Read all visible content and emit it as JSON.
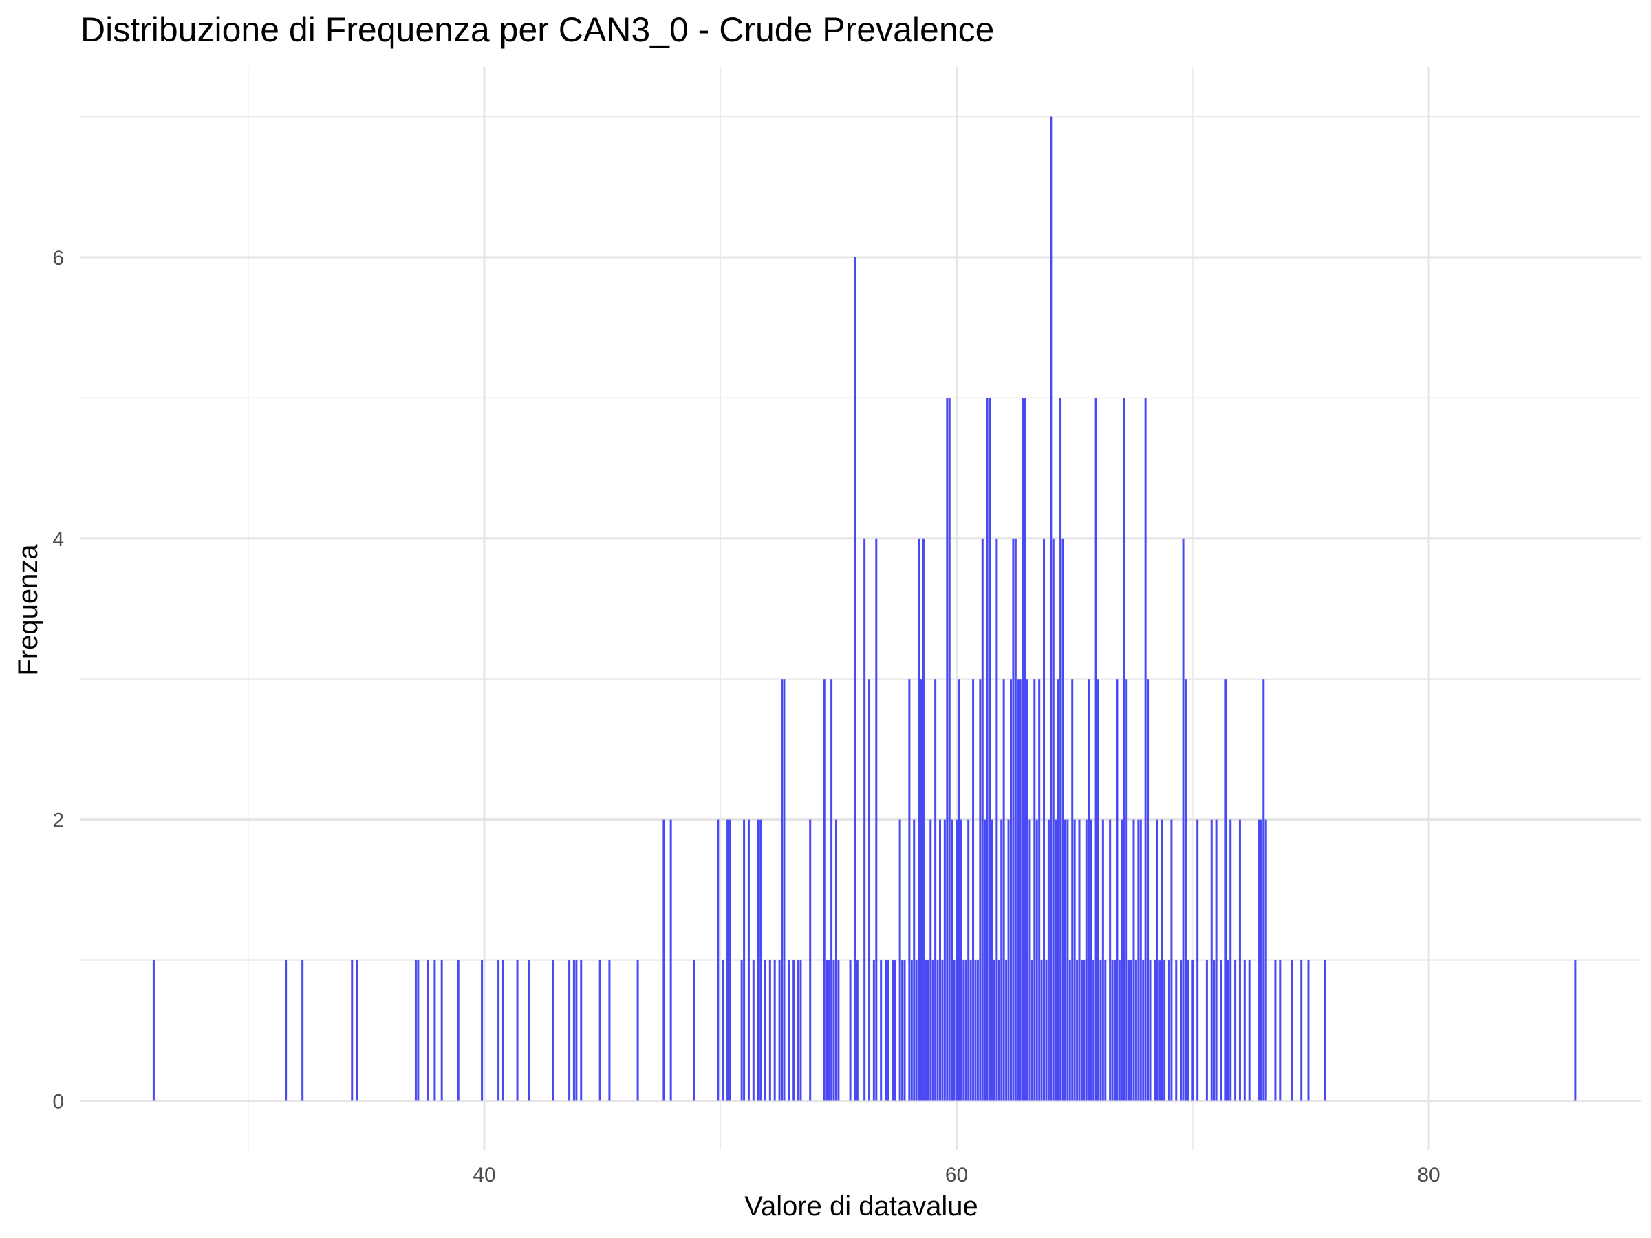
{
  "chart_data": {
    "type": "bar",
    "title": "Distribuzione di Frequenza per CAN3_0 - Crude Prevalence",
    "xlabel": "Valore di datavalue",
    "ylabel": "Frequenza",
    "xlim": [
      22.9,
      89.0
    ],
    "ylim": [
      -0.35,
      7.35
    ],
    "x_ticks": [
      40,
      60,
      80
    ],
    "y_ticks": [
      0,
      2,
      4,
      6
    ],
    "grid": true,
    "bar_color": "#4a4af4",
    "points": [
      [
        26.0,
        1
      ],
      [
        31.6,
        1
      ],
      [
        32.3,
        1
      ],
      [
        34.4,
        1
      ],
      [
        34.6,
        1
      ],
      [
        37.1,
        1
      ],
      [
        37.2,
        1
      ],
      [
        37.6,
        1
      ],
      [
        37.9,
        1
      ],
      [
        38.2,
        1
      ],
      [
        38.9,
        1
      ],
      [
        39.9,
        1
      ],
      [
        40.6,
        1
      ],
      [
        40.8,
        1
      ],
      [
        41.4,
        1
      ],
      [
        41.9,
        1
      ],
      [
        42.9,
        1
      ],
      [
        43.6,
        1
      ],
      [
        43.8,
        1
      ],
      [
        43.9,
        1
      ],
      [
        44.1,
        1
      ],
      [
        44.9,
        1
      ],
      [
        45.3,
        1
      ],
      [
        46.5,
        1
      ],
      [
        47.6,
        2
      ],
      [
        47.9,
        2
      ],
      [
        48.9,
        1
      ],
      [
        49.9,
        2
      ],
      [
        50.1,
        1
      ],
      [
        50.3,
        2
      ],
      [
        50.4,
        2
      ],
      [
        50.9,
        1
      ],
      [
        51.0,
        2
      ],
      [
        51.2,
        2
      ],
      [
        51.4,
        1
      ],
      [
        51.6,
        2
      ],
      [
        51.7,
        2
      ],
      [
        51.9,
        1
      ],
      [
        52.1,
        1
      ],
      [
        52.3,
        1
      ],
      [
        52.5,
        1
      ],
      [
        52.6,
        3
      ],
      [
        52.7,
        3
      ],
      [
        52.9,
        1
      ],
      [
        53.1,
        1
      ],
      [
        53.3,
        1
      ],
      [
        53.4,
        1
      ],
      [
        53.8,
        2
      ],
      [
        54.4,
        3
      ],
      [
        54.5,
        1
      ],
      [
        54.6,
        1
      ],
      [
        54.7,
        3
      ],
      [
        54.8,
        1
      ],
      [
        54.9,
        2
      ],
      [
        55.0,
        1
      ],
      [
        55.5,
        1
      ],
      [
        55.7,
        6
      ],
      [
        55.8,
        1
      ],
      [
        56.1,
        4
      ],
      [
        56.3,
        3
      ],
      [
        56.5,
        1
      ],
      [
        56.6,
        4
      ],
      [
        56.8,
        1
      ],
      [
        57.0,
        1
      ],
      [
        57.1,
        1
      ],
      [
        57.3,
        1
      ],
      [
        57.4,
        1
      ],
      [
        57.6,
        2
      ],
      [
        57.7,
        1
      ],
      [
        57.8,
        1
      ],
      [
        58.0,
        3
      ],
      [
        58.1,
        1
      ],
      [
        58.2,
        2
      ],
      [
        58.3,
        1
      ],
      [
        58.4,
        4
      ],
      [
        58.5,
        3
      ],
      [
        58.6,
        4
      ],
      [
        58.7,
        1
      ],
      [
        58.8,
        1
      ],
      [
        58.9,
        2
      ],
      [
        59.0,
        1
      ],
      [
        59.1,
        3
      ],
      [
        59.2,
        1
      ],
      [
        59.3,
        2
      ],
      [
        59.4,
        1
      ],
      [
        59.5,
        2
      ],
      [
        59.6,
        5
      ],
      [
        59.7,
        5
      ],
      [
        59.8,
        2
      ],
      [
        59.9,
        1
      ],
      [
        60.0,
        2
      ],
      [
        60.1,
        3
      ],
      [
        60.2,
        2
      ],
      [
        60.3,
        1
      ],
      [
        60.4,
        1
      ],
      [
        60.5,
        2
      ],
      [
        60.6,
        1
      ],
      [
        60.7,
        3
      ],
      [
        60.8,
        1
      ],
      [
        60.9,
        1
      ],
      [
        61.0,
        3
      ],
      [
        61.1,
        4
      ],
      [
        61.2,
        2
      ],
      [
        61.3,
        5
      ],
      [
        61.4,
        5
      ],
      [
        61.5,
        2
      ],
      [
        61.6,
        1
      ],
      [
        61.7,
        4
      ],
      [
        61.8,
        1
      ],
      [
        61.9,
        2
      ],
      [
        62.0,
        3
      ],
      [
        62.1,
        1
      ],
      [
        62.2,
        2
      ],
      [
        62.3,
        3
      ],
      [
        62.4,
        4
      ],
      [
        62.5,
        4
      ],
      [
        62.6,
        3
      ],
      [
        62.7,
        3
      ],
      [
        62.8,
        5
      ],
      [
        62.9,
        5
      ],
      [
        63.0,
        3
      ],
      [
        63.1,
        2
      ],
      [
        63.2,
        1
      ],
      [
        63.3,
        3
      ],
      [
        63.4,
        2
      ],
      [
        63.5,
        3
      ],
      [
        63.6,
        1
      ],
      [
        63.7,
        4
      ],
      [
        63.8,
        1
      ],
      [
        63.9,
        2
      ],
      [
        64.0,
        7
      ],
      [
        64.1,
        4
      ],
      [
        64.2,
        2
      ],
      [
        64.3,
        3
      ],
      [
        64.4,
        5
      ],
      [
        64.5,
        4
      ],
      [
        64.6,
        2
      ],
      [
        64.7,
        2
      ],
      [
        64.8,
        1
      ],
      [
        64.9,
        3
      ],
      [
        65.0,
        2
      ],
      [
        65.1,
        1
      ],
      [
        65.2,
        2
      ],
      [
        65.3,
        1
      ],
      [
        65.4,
        1
      ],
      [
        65.5,
        2
      ],
      [
        65.6,
        3
      ],
      [
        65.7,
        2
      ],
      [
        65.8,
        1
      ],
      [
        65.9,
        5
      ],
      [
        66.0,
        3
      ],
      [
        66.1,
        1
      ],
      [
        66.2,
        2
      ],
      [
        66.3,
        1
      ],
      [
        66.5,
        2
      ],
      [
        66.6,
        1
      ],
      [
        66.7,
        1
      ],
      [
        66.8,
        3
      ],
      [
        66.9,
        1
      ],
      [
        67.0,
        2
      ],
      [
        67.1,
        5
      ],
      [
        67.2,
        3
      ],
      [
        67.3,
        1
      ],
      [
        67.4,
        1
      ],
      [
        67.5,
        2
      ],
      [
        67.6,
        1
      ],
      [
        67.7,
        2
      ],
      [
        67.8,
        2
      ],
      [
        67.9,
        1
      ],
      [
        68.0,
        5
      ],
      [
        68.1,
        3
      ],
      [
        68.2,
        1
      ],
      [
        68.4,
        1
      ],
      [
        68.5,
        2
      ],
      [
        68.6,
        1
      ],
      [
        68.7,
        2
      ],
      [
        68.8,
        1
      ],
      [
        69.0,
        1
      ],
      [
        69.1,
        2
      ],
      [
        69.3,
        1
      ],
      [
        69.5,
        1
      ],
      [
        69.6,
        4
      ],
      [
        69.7,
        3
      ],
      [
        69.8,
        1
      ],
      [
        70.0,
        1
      ],
      [
        70.2,
        2
      ],
      [
        70.6,
        1
      ],
      [
        70.8,
        2
      ],
      [
        70.9,
        1
      ],
      [
        71.0,
        2
      ],
      [
        71.2,
        1
      ],
      [
        71.4,
        3
      ],
      [
        71.5,
        1
      ],
      [
        71.6,
        2
      ],
      [
        71.8,
        1
      ],
      [
        72.0,
        2
      ],
      [
        72.2,
        1
      ],
      [
        72.4,
        1
      ],
      [
        72.8,
        2
      ],
      [
        72.9,
        2
      ],
      [
        73.0,
        3
      ],
      [
        73.1,
        2
      ],
      [
        73.5,
        1
      ],
      [
        73.7,
        1
      ],
      [
        74.2,
        1
      ],
      [
        74.6,
        1
      ],
      [
        74.9,
        1
      ],
      [
        75.6,
        1
      ],
      [
        86.2,
        1
      ]
    ]
  }
}
